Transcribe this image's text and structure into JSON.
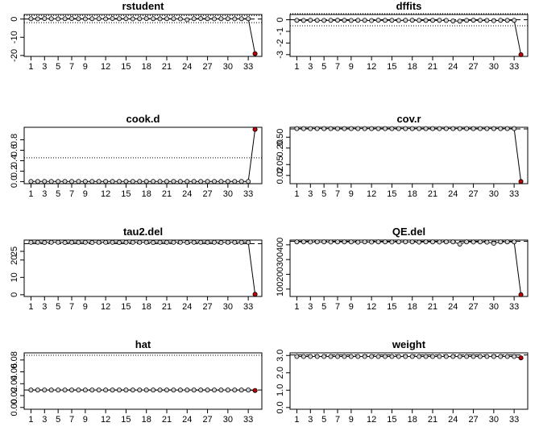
{
  "chart_data": [
    {
      "type": "line",
      "title": "rstudent",
      "x": [
        1,
        2,
        3,
        4,
        5,
        6,
        7,
        8,
        9,
        10,
        11,
        12,
        13,
        14,
        15,
        16,
        17,
        18,
        19,
        20,
        21,
        22,
        23,
        24,
        25,
        26,
        27,
        28,
        29,
        30,
        31,
        32,
        33,
        34
      ],
      "xlim": [
        0,
        35
      ],
      "xticks": [
        1,
        3,
        5,
        7,
        9,
        12,
        15,
        18,
        21,
        24,
        27,
        30,
        33
      ],
      "values": [
        0.2,
        0.1,
        0.3,
        0.2,
        0.1,
        0.2,
        0.3,
        0.2,
        0.1,
        0.2,
        0.2,
        0.1,
        0.3,
        0.2,
        0.2,
        0.1,
        0.2,
        0.3,
        0.2,
        0.1,
        0.2,
        0.2,
        0.1,
        -0.4,
        0.2,
        0.3,
        0.2,
        0.1,
        0.2,
        0.2,
        0.1,
        0.2,
        0.2,
        -19
      ],
      "ylim": [
        -20.5,
        2.5
      ],
      "yticks": [
        0,
        -10,
        -20
      ],
      "reference_lines": [
        {
          "value": 1.96,
          "style": "dotted"
        },
        {
          "value": -1.96,
          "style": "dotted"
        },
        {
          "value": 0,
          "style": "dashed"
        }
      ],
      "color": "#d3d3d3",
      "highlight_color": "#c00000",
      "highlight": [
        34
      ]
    },
    {
      "type": "line",
      "title": "dffits",
      "x": [
        1,
        2,
        3,
        4,
        5,
        6,
        7,
        8,
        9,
        10,
        11,
        12,
        13,
        14,
        15,
        16,
        17,
        18,
        19,
        20,
        21,
        22,
        23,
        24,
        25,
        26,
        27,
        28,
        29,
        30,
        31,
        32,
        33,
        34
      ],
      "xlim": [
        0,
        35
      ],
      "xticks": [
        1,
        3,
        5,
        7,
        9,
        12,
        15,
        18,
        21,
        24,
        27,
        30,
        33
      ],
      "values": [
        -0.05,
        -0.06,
        -0.04,
        -0.05,
        -0.06,
        -0.05,
        -0.04,
        -0.05,
        -0.06,
        -0.05,
        -0.05,
        -0.07,
        -0.04,
        -0.05,
        -0.05,
        -0.06,
        -0.05,
        -0.04,
        -0.05,
        -0.06,
        -0.05,
        -0.05,
        -0.06,
        -0.1,
        -0.12,
        -0.05,
        -0.04,
        -0.05,
        -0.06,
        -0.08,
        -0.05,
        -0.05,
        -0.05,
        -3.0
      ],
      "ylim": [
        -3.15,
        0.45
      ],
      "yticks": [
        0,
        -1,
        -2,
        -3
      ],
      "reference_lines": [
        {
          "value": 0.52,
          "style": "dotted"
        },
        {
          "value": -0.52,
          "style": "dotted"
        },
        {
          "value": 0,
          "style": "dashed"
        }
      ],
      "color": "#d3d3d3",
      "highlight_color": "#c00000",
      "highlight": [
        34
      ]
    },
    {
      "type": "line",
      "title": "cook.d",
      "x": [
        1,
        2,
        3,
        4,
        5,
        6,
        7,
        8,
        9,
        10,
        11,
        12,
        13,
        14,
        15,
        16,
        17,
        18,
        19,
        20,
        21,
        22,
        23,
        24,
        25,
        26,
        27,
        28,
        29,
        30,
        31,
        32,
        33,
        34
      ],
      "xlim": [
        0,
        35
      ],
      "xticks": [
        1,
        3,
        5,
        7,
        9,
        12,
        15,
        18,
        21,
        24,
        27,
        30,
        33
      ],
      "values": [
        0.003,
        0.003,
        0.003,
        0.003,
        0.003,
        0.003,
        0.003,
        0.003,
        0.003,
        0.003,
        0.003,
        0.003,
        0.003,
        0.003,
        0.003,
        0.003,
        0.003,
        0.003,
        0.003,
        0.003,
        0.003,
        0.003,
        0.003,
        0.003,
        0.003,
        0.003,
        0.003,
        0.003,
        0.003,
        0.003,
        0.003,
        0.003,
        0.003,
        1.0
      ],
      "ylim": [
        -0.04,
        1.04
      ],
      "yticks": [
        {
          "value": 0,
          "label": "0.0"
        },
        {
          "value": 0.2,
          "label": "0.2"
        },
        {
          "value": 0.4,
          "label": "0.4"
        },
        {
          "value": 0.6,
          "label": "0.6"
        },
        {
          "value": 0.8,
          "label": "0.8"
        }
      ],
      "reference_lines": [
        {
          "value": 0.455,
          "style": "dotted"
        }
      ],
      "color": "#d3d3d3",
      "highlight_color": "#c00000",
      "highlight": [
        34
      ]
    },
    {
      "type": "line",
      "title": "cov.r",
      "x": [
        1,
        2,
        3,
        4,
        5,
        6,
        7,
        8,
        9,
        10,
        11,
        12,
        13,
        14,
        15,
        16,
        17,
        18,
        19,
        20,
        21,
        22,
        23,
        24,
        25,
        26,
        27,
        28,
        29,
        30,
        31,
        32,
        33,
        34
      ],
      "xlim": [
        0,
        35
      ],
      "xticks": [
        1,
        3,
        5,
        7,
        9,
        12,
        15,
        18,
        21,
        24,
        27,
        30,
        33
      ],
      "values": [
        1.03,
        1.03,
        1.03,
        1.03,
        1.03,
        1.03,
        1.03,
        1.03,
        1.03,
        1.03,
        1.03,
        1.03,
        1.03,
        1.03,
        1.03,
        1.03,
        1.03,
        1.03,
        1.03,
        1.03,
        1.03,
        1.03,
        1.03,
        1.03,
        1.03,
        1.03,
        1.03,
        1.03,
        1.03,
        1.03,
        1.03,
        1.03,
        1.03,
        0.012
      ],
      "ylim": [
        0.01,
        1.15
      ],
      "log_scale": true,
      "yticks": [
        0.02,
        0.05,
        {
          "value": 0.2,
          "label": "0.20"
        },
        {
          "value": 0.5,
          "label": "0.50"
        }
      ],
      "reference_lines": [
        {
          "value": 1,
          "style": "dashed"
        }
      ],
      "color": "#d3d3d3",
      "highlight_color": "#c00000",
      "highlight": [
        34
      ]
    },
    {
      "type": "line",
      "title": "tau2.del",
      "x": [
        1,
        2,
        3,
        4,
        5,
        6,
        7,
        8,
        9,
        10,
        11,
        12,
        13,
        14,
        15,
        16,
        17,
        18,
        19,
        20,
        21,
        22,
        23,
        24,
        25,
        26,
        27,
        28,
        29,
        30,
        31,
        32,
        33,
        34
      ],
      "xlim": [
        0,
        35
      ],
      "xticks": [
        1,
        3,
        5,
        7,
        9,
        12,
        15,
        18,
        21,
        24,
        27,
        30,
        33
      ],
      "values": [
        30.2,
        30.2,
        30.1,
        30.2,
        30.2,
        30.1,
        30.2,
        30.2,
        30.2,
        30.1,
        30.2,
        30.2,
        30.2,
        30.1,
        30.2,
        30.2,
        30.2,
        30.2,
        30.1,
        30.2,
        30.2,
        30.2,
        30.2,
        30.1,
        30.2,
        30.2,
        30.2,
        30.2,
        30.1,
        30.2,
        30.2,
        30.2,
        30.2,
        0.3
      ],
      "ylim": [
        -1,
        31.5
      ],
      "yticks": [
        0,
        10,
        20,
        25
      ],
      "reference_lines": [
        {
          "value": 29.4,
          "style": "dashed"
        }
      ],
      "color": "#d3d3d3",
      "highlight_color": "#c00000",
      "highlight": [
        34
      ]
    },
    {
      "type": "line",
      "title": "QE.del",
      "x": [
        1,
        2,
        3,
        4,
        5,
        6,
        7,
        8,
        9,
        10,
        11,
        12,
        13,
        14,
        15,
        16,
        17,
        18,
        19,
        20,
        21,
        22,
        23,
        24,
        25,
        26,
        27,
        28,
        29,
        30,
        31,
        32,
        33,
        34
      ],
      "xlim": [
        0,
        35
      ],
      "xticks": [
        1,
        3,
        5,
        7,
        9,
        12,
        15,
        18,
        21,
        24,
        27,
        30,
        33
      ],
      "values": [
        420,
        420,
        419,
        420,
        420,
        419,
        420,
        420,
        420,
        418,
        420,
        419,
        420,
        420,
        419,
        420,
        420,
        420,
        418,
        420,
        420,
        419,
        420,
        420,
        405,
        420,
        419,
        420,
        418,
        410,
        420,
        420,
        420,
        62
      ],
      "ylim": [
        50,
        432
      ],
      "yticks": [
        100,
        200,
        300,
        400
      ],
      "reference_lines": [
        {
          "value": 424,
          "style": "dashed"
        }
      ],
      "color": "#d3d3d3",
      "highlight_color": "#c00000",
      "highlight": [
        34
      ]
    },
    {
      "type": "line",
      "title": "hat",
      "x": [
        1,
        2,
        3,
        4,
        5,
        6,
        7,
        8,
        9,
        10,
        11,
        12,
        13,
        14,
        15,
        16,
        17,
        18,
        19,
        20,
        21,
        22,
        23,
        24,
        25,
        26,
        27,
        28,
        29,
        30,
        31,
        32,
        33,
        34
      ],
      "xlim": [
        0,
        35
      ],
      "xticks": [
        1,
        3,
        5,
        7,
        9,
        12,
        15,
        18,
        21,
        24,
        27,
        30,
        33
      ],
      "values": [
        0.0294,
        0.0294,
        0.0294,
        0.0294,
        0.0294,
        0.0294,
        0.0294,
        0.0294,
        0.0294,
        0.0294,
        0.0294,
        0.0294,
        0.0294,
        0.0294,
        0.0294,
        0.0294,
        0.0294,
        0.0294,
        0.0294,
        0.0294,
        0.0294,
        0.0294,
        0.0294,
        0.0294,
        0.0294,
        0.0294,
        0.0294,
        0.0294,
        0.0294,
        0.0294,
        0.0294,
        0.0294,
        0.0294,
        0.0286
      ],
      "ylim": [
        -0.003,
        0.092
      ],
      "yticks": [
        {
          "value": 0,
          "label": "0.00"
        },
        0.02,
        0.04,
        0.06,
        0.08
      ],
      "reference_lines": [
        {
          "value": 0.088,
          "style": "dotted"
        },
        {
          "value": 0.0294,
          "style": "dashed"
        }
      ],
      "color": "#d3d3d3",
      "highlight_color": "#c00000",
      "highlight": [
        34
      ]
    },
    {
      "type": "line",
      "title": "weight",
      "x": [
        1,
        2,
        3,
        4,
        5,
        6,
        7,
        8,
        9,
        10,
        11,
        12,
        13,
        14,
        15,
        16,
        17,
        18,
        19,
        20,
        21,
        22,
        23,
        24,
        25,
        26,
        27,
        28,
        29,
        30,
        31,
        32,
        33,
        34
      ],
      "xlim": [
        0,
        35
      ],
      "xticks": [
        1,
        3,
        5,
        7,
        9,
        12,
        15,
        18,
        21,
        24,
        27,
        30,
        33
      ],
      "values": [
        2.94,
        2.94,
        2.94,
        2.94,
        2.94,
        2.94,
        2.94,
        2.94,
        2.94,
        2.94,
        2.94,
        2.94,
        2.94,
        2.94,
        2.94,
        2.94,
        2.94,
        2.94,
        2.94,
        2.94,
        2.94,
        2.94,
        2.94,
        2.94,
        2.94,
        2.94,
        2.94,
        2.94,
        2.94,
        2.94,
        2.94,
        2.94,
        2.94,
        2.86
      ],
      "ylim": [
        -0.1,
        3.15
      ],
      "yticks": [
        {
          "value": 0,
          "label": "0.0"
        },
        {
          "value": 1,
          "label": "1.0"
        },
        {
          "value": 2,
          "label": "2.0"
        },
        {
          "value": 3,
          "label": "3.0"
        }
      ],
      "reference_lines": [
        {
          "value": 3.03,
          "style": "dashed"
        }
      ],
      "color": "#d3d3d3",
      "highlight_color": "#c00000",
      "highlight": [
        34
      ]
    }
  ]
}
